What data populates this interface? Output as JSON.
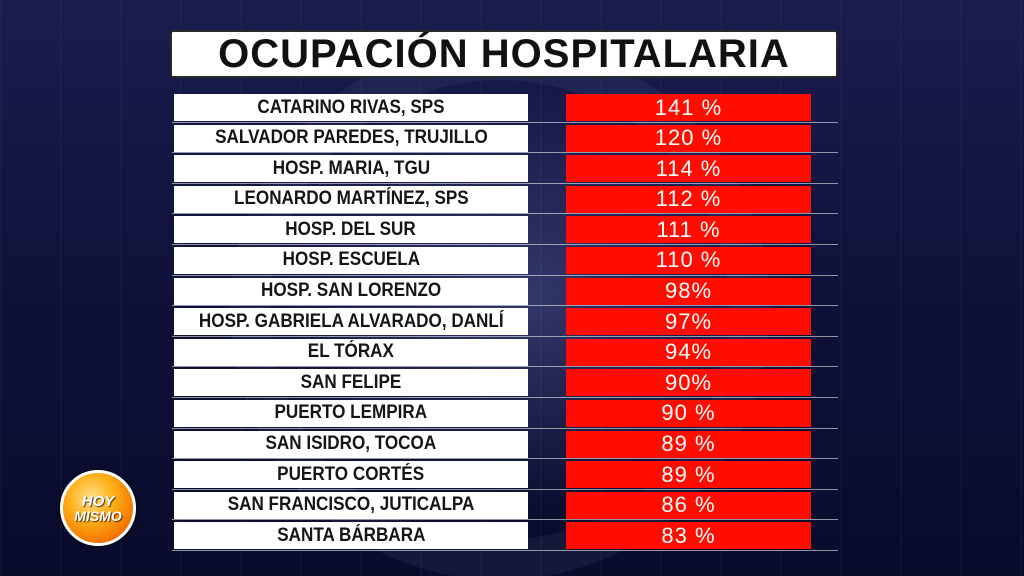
{
  "title": "OCUPACIÓN HOSPITALARIA",
  "rows": [
    {
      "name": "CATARINO RIVAS, SPS",
      "value": "141 %"
    },
    {
      "name": "SALVADOR PAREDES, TRUJILLO",
      "value": "120 %"
    },
    {
      "name": "HOSP. MARIA, TGU",
      "value": "114 %"
    },
    {
      "name": "LEONARDO MARTÍNEZ, SPS",
      "value": "112 %"
    },
    {
      "name": "HOSP. DEL SUR",
      "value": "111 %"
    },
    {
      "name": "HOSP. ESCUELA",
      "value": "110 %"
    },
    {
      "name": "HOSP. SAN LORENZO",
      "value": "98%"
    },
    {
      "name": "HOSP. GABRIELA ALVARADO, DANLÍ",
      "value": "97%"
    },
    {
      "name": "EL TÓRAX",
      "value": "94%"
    },
    {
      "name": "SAN FELIPE",
      "value": "90%"
    },
    {
      "name": "PUERTO LEMPIRA",
      "value": "90 %"
    },
    {
      "name": "SAN ISIDRO, TOCOA",
      "value": "89 %"
    },
    {
      "name": "PUERTO CORTÉS",
      "value": "89 %"
    },
    {
      "name": "SAN FRANCISCO, JUTICALPA",
      "value": "86 %"
    },
    {
      "name": "SANTA BÁRBARA",
      "value": "83 %"
    }
  ],
  "logo": {
    "line1": "HOY",
    "line2": "MISMO"
  },
  "colors": {
    "value_cell": "#ff0d00",
    "name_cell": "#ffffff",
    "background": "#0e1038"
  }
}
